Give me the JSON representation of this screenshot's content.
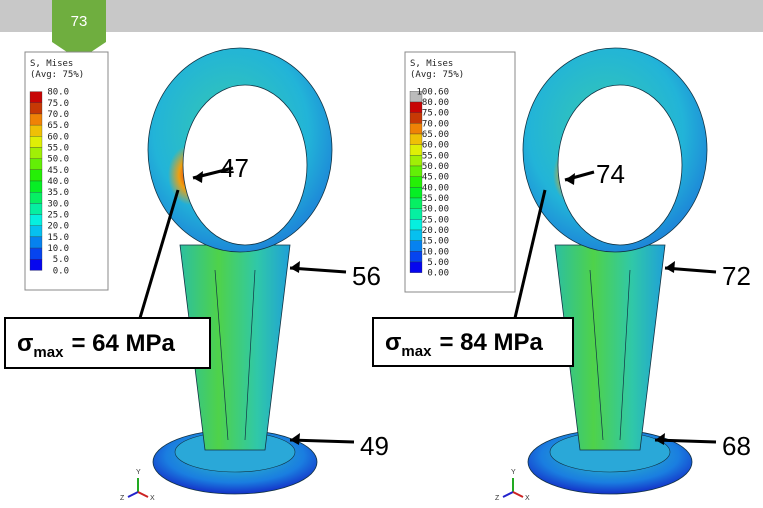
{
  "header": {
    "page_number": "73"
  },
  "panels": [
    {
      "legend": {
        "title": "S, Mises",
        "subtitle": "(Avg: 75%)",
        "values": [
          "80.0",
          "75.0",
          "70.0",
          "65.0",
          "60.0",
          "55.0",
          "50.0",
          "45.0",
          "40.0",
          "35.0",
          "30.0",
          "25.0",
          "20.0",
          "15.0",
          "10.0",
          "5.0",
          "0.0"
        ]
      },
      "callouts": [
        "47",
        "56",
        "49"
      ],
      "max_stress": {
        "symbol": "σ",
        "subscript": "max",
        "text": "= 64 MPa"
      },
      "triad": [
        "Y",
        "Z",
        "X"
      ]
    },
    {
      "legend": {
        "title": "S, Mises",
        "subtitle": "(Avg: 75%)",
        "values": [
          "100.60",
          "80.00",
          "75.00",
          "70.00",
          "65.00",
          "60.00",
          "55.00",
          "50.00",
          "45.00",
          "40.00",
          "35.00",
          "30.00",
          "25.00",
          "20.00",
          "15.00",
          "10.00",
          "5.00",
          "0.00"
        ]
      },
      "callouts": [
        "74",
        "72",
        "68"
      ],
      "max_stress": {
        "symbol": "σ",
        "subscript": "max",
        "text": "= 84 MPa"
      },
      "triad": [
        "Y",
        "Z",
        "X"
      ]
    }
  ]
}
